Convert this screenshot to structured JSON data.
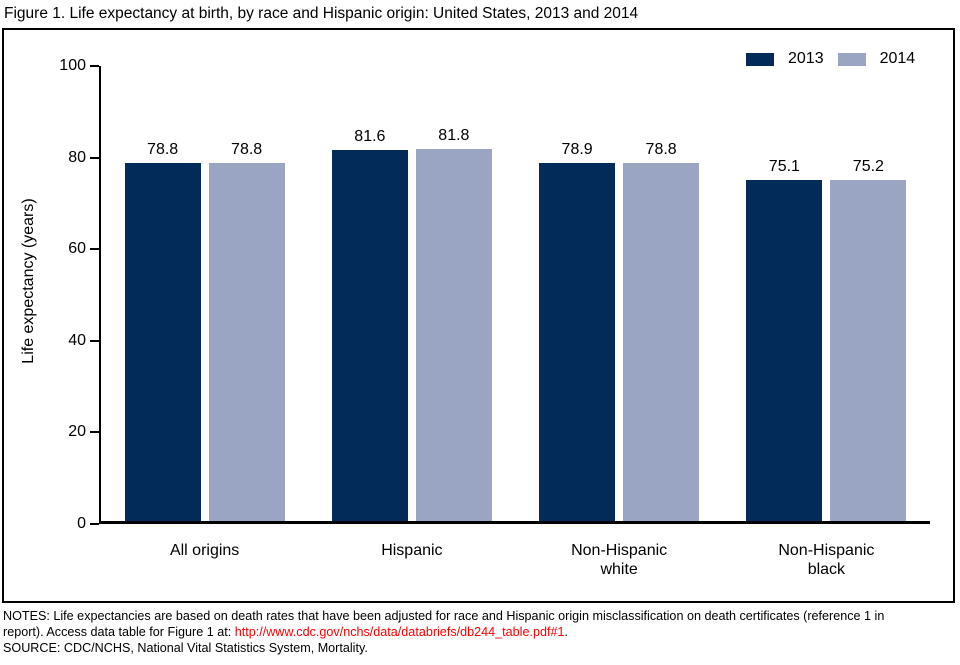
{
  "title": "Figure 1. Life expectancy at birth, by race and Hispanic origin: United States, 2013 and 2014",
  "colors": {
    "series_2013": "#032b5a",
    "series_2014": "#9aa5c4",
    "axis": "#000000",
    "link_red": "#ff0000"
  },
  "chart_data": {
    "type": "bar",
    "categories": [
      "All origins",
      "Hispanic",
      "Non-Hispanic\nwhite",
      "Non-Hispanic\nblack"
    ],
    "series": [
      {
        "name": "2013",
        "color": "#032b5a",
        "values": [
          78.8,
          81.6,
          78.9,
          75.1
        ]
      },
      {
        "name": "2014",
        "color": "#9aa5c4",
        "values": [
          78.8,
          81.8,
          78.8,
          75.2
        ]
      }
    ],
    "value_labels": {
      "s2013": [
        "78.8",
        "81.6",
        "78.9",
        "75.1"
      ],
      "s2014": [
        "78.8",
        "81.8",
        "78.8",
        "75.2"
      ]
    },
    "ylabel": "Life expectancy (years)",
    "xlabel": "",
    "yticks": [
      0,
      20,
      40,
      60,
      80,
      100
    ],
    "ytick_labels": [
      "0",
      "20",
      "40",
      "60",
      "80",
      "100"
    ],
    "ylim": [
      0,
      100
    ],
    "grid": false,
    "legend_position": "top-right"
  },
  "legend": {
    "items": [
      {
        "label": "2013",
        "color": "#032b5a"
      },
      {
        "label": "2014",
        "color": "#9aa5c4"
      }
    ]
  },
  "notes": {
    "line1": "NOTES: Life expectancies are based on death rates that have been adjusted for race and Hispanic origin misclassification on death certificates (reference 1 in",
    "line2_prefix": "report). Access data table for Figure 1 at: ",
    "line2_link": "http://www.cdc.gov/nchs/data/databriefs/db244_table.pdf#1",
    "line2_suffix": ".",
    "line3": "SOURCE: CDC/NCHS, National Vital Statistics System, Mortality."
  }
}
